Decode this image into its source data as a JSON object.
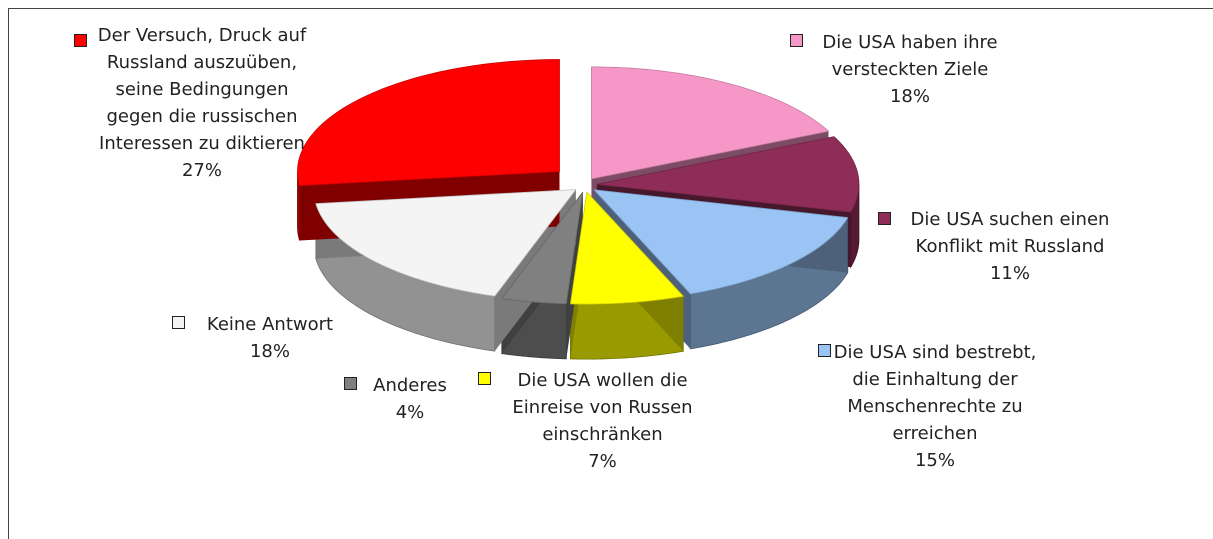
{
  "chart_data": {
    "type": "pie",
    "categories": [
      "Die USA haben ihre versteckten Ziele",
      "Die USA suchen einen Konflikt mit Russland",
      "Die USA sind bestrebt, die Einhaltung der Menschenrechte zu erreichen",
      "Die USA wollen die Einreise von Russen einschränken",
      "Anderes",
      "Keine Antwort",
      "Der Versuch, Druck auf Russland auszuüben, seine Bedingungen gegen die russischen Interessen zu diktieren"
    ],
    "values": [
      18,
      11,
      15,
      7,
      4,
      18,
      27
    ],
    "value_labels": [
      "18%",
      "11%",
      "15%",
      "7%",
      "4%",
      "18%",
      "27%"
    ],
    "colors": [
      "#f598c8",
      "#8e2d57",
      "#99c4f4",
      "#ffff00",
      "#808080",
      "#f4f4f4",
      "#ff0000"
    ]
  }
}
